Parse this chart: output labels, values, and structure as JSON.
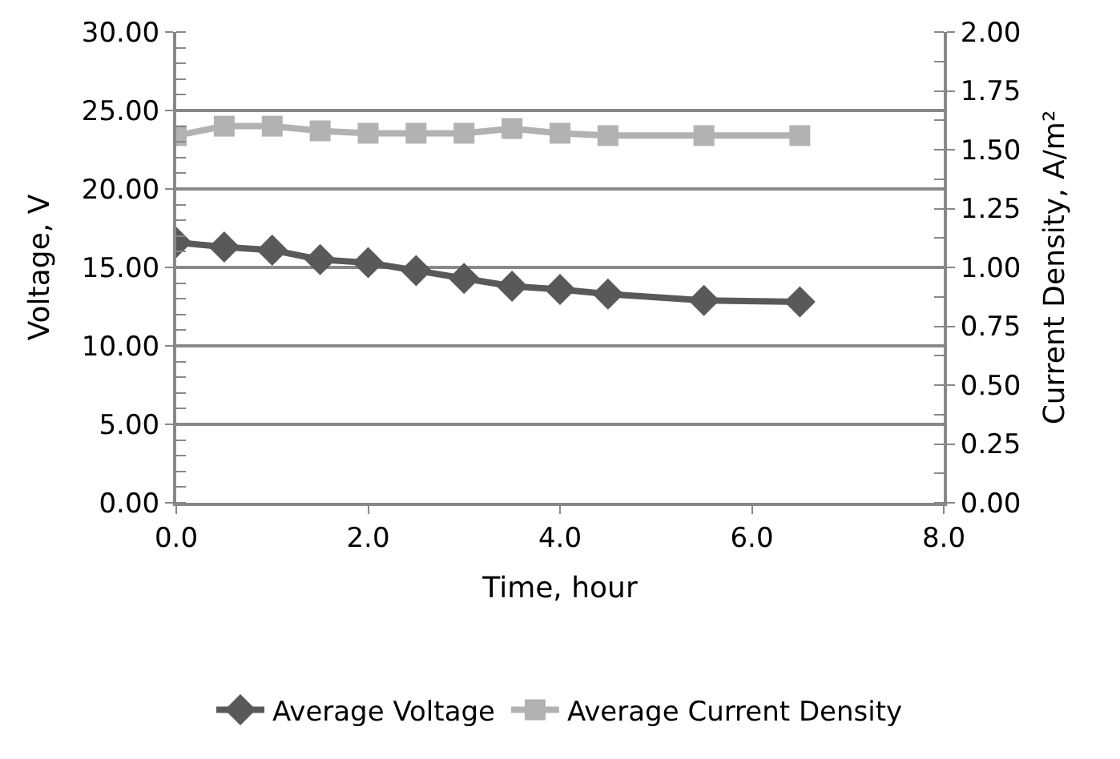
{
  "chart_data": {
    "type": "line",
    "xlabel": "Time, hour",
    "ylabel": "Voltage, V",
    "y2label": "Current Density, A/m²",
    "xlim": [
      0,
      8
    ],
    "xticks": [
      {
        "value": 0,
        "label": "0.0"
      },
      {
        "value": 2,
        "label": "2.0"
      },
      {
        "value": 4,
        "label": "4.0"
      },
      {
        "value": 6,
        "label": "6.0"
      },
      {
        "value": 8,
        "label": "8.0"
      }
    ],
    "ylim": [
      0,
      30
    ],
    "yticks": [
      {
        "value": 0,
        "label": "0.00"
      },
      {
        "value": 5,
        "label": "5.00"
      },
      {
        "value": 10,
        "label": "10.00"
      },
      {
        "value": 15,
        "label": "15.00"
      },
      {
        "value": 20,
        "label": "20.00"
      },
      {
        "value": 25,
        "label": "25.00"
      },
      {
        "value": 30,
        "label": "30.00"
      }
    ],
    "y2lim": [
      0,
      2
    ],
    "y2ticks": [
      {
        "value": 0,
        "label": "0.00"
      },
      {
        "value": 0.25,
        "label": "0.25"
      },
      {
        "value": 0.5,
        "label": "0.50"
      },
      {
        "value": 0.75,
        "label": "0.75"
      },
      {
        "value": 1,
        "label": "1.00"
      },
      {
        "value": 1.25,
        "label": "1.25"
      },
      {
        "value": 1.5,
        "label": "1.50"
      },
      {
        "value": 1.75,
        "label": "1.75"
      },
      {
        "value": 2,
        "label": "2.00"
      }
    ],
    "x": [
      0,
      0.5,
      1,
      1.5,
      2,
      2.5,
      3,
      3.5,
      4,
      4.5,
      5.5,
      6.5
    ],
    "grid": "y",
    "legend": "bottom",
    "series": [
      {
        "name": "Average Voltage",
        "color": "#595959",
        "marker": "diamond",
        "values": [
          16.6,
          16.3,
          16.1,
          15.5,
          15.3,
          14.8,
          14.3,
          13.8,
          13.6,
          13.3,
          12.9,
          12.8
        ]
      },
      {
        "name": "Average Current Density",
        "color": "#b2b2b2",
        "marker": "square",
        "axis": "y2",
        "values": [
          1.56,
          1.6,
          1.6,
          1.58,
          1.57,
          1.57,
          1.57,
          1.59,
          1.57,
          1.56,
          1.56,
          1.56
        ]
      }
    ]
  }
}
